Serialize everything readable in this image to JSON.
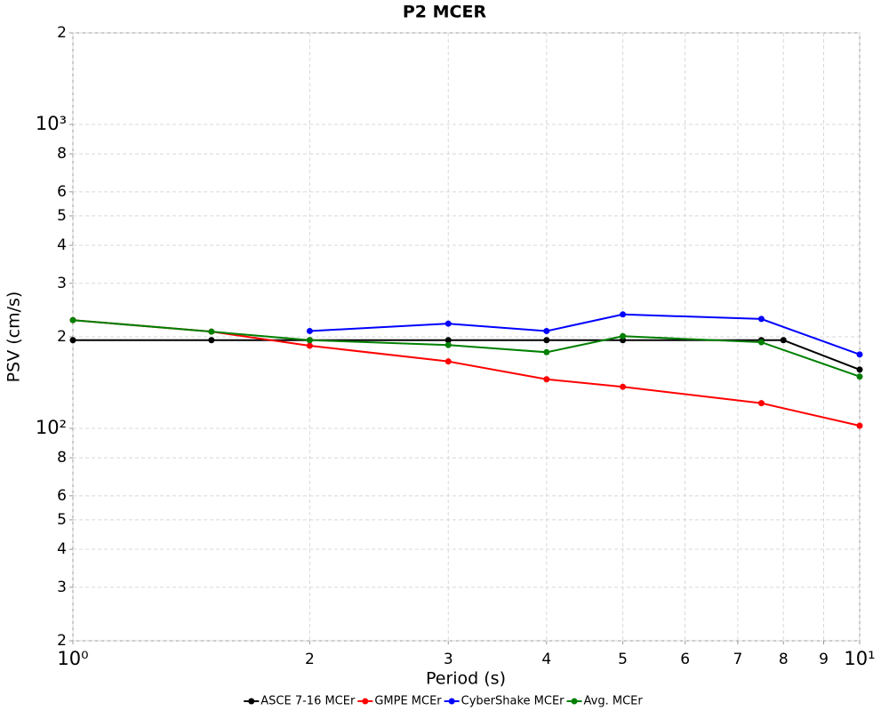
{
  "chart_data": {
    "type": "line",
    "title": "P2 MCER",
    "xlabel": "Period (s)",
    "ylabel": "PSV (cm/s)",
    "xscale": "log",
    "yscale": "log",
    "xlim": [
      1,
      10
    ],
    "ylim": [
      20,
      2000
    ],
    "xticks": [
      {
        "value": 1,
        "label": "10⁰"
      },
      2,
      3,
      4,
      5,
      6,
      7,
      8,
      9,
      {
        "value": 10,
        "label": "10¹"
      }
    ],
    "yticks": [
      2,
      3,
      4,
      5,
      6,
      8,
      {
        "value": 100,
        "label": "10²"
      },
      2,
      3,
      4,
      5,
      6,
      8,
      {
        "value": 1000,
        "label": "10³"
      },
      2
    ],
    "ytick_values": [
      20,
      30,
      40,
      50,
      60,
      80,
      100,
      200,
      300,
      400,
      500,
      600,
      800,
      1000,
      2000
    ],
    "grid": true,
    "legend": "bottom",
    "series": [
      {
        "name": "ASCE 7-16 MCEr",
        "color": "#000000",
        "x": [
          1,
          1.5,
          2,
          3,
          4,
          5,
          7.5,
          8,
          10
        ],
        "values": [
          195,
          195,
          195,
          195,
          195,
          195,
          195,
          195,
          156
        ]
      },
      {
        "name": "GMPE MCEr",
        "color": "#ff0000",
        "x": [
          1,
          1.5,
          2,
          3,
          4,
          5,
          7.5,
          10
        ],
        "values": [
          227,
          208,
          187,
          166,
          145,
          137,
          121,
          102
        ]
      },
      {
        "name": "CyberShake MCEr",
        "color": "#0000ff",
        "x": [
          2,
          3,
          4,
          5,
          7.5,
          10
        ],
        "values": [
          209,
          221,
          209,
          237,
          229,
          175
        ]
      },
      {
        "name": "Avg. MCEr",
        "color": "#008000",
        "x": [
          1,
          1.5,
          2,
          3,
          4,
          5,
          7.5,
          10
        ],
        "values": [
          227,
          208,
          195,
          188,
          178,
          201,
          192,
          148
        ]
      }
    ]
  }
}
